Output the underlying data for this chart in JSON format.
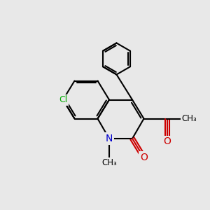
{
  "bg_color": "#e8e8e8",
  "bond_color": "#000000",
  "bond_width": 1.5,
  "atom_colors": {
    "N": "#0000cc",
    "O": "#cc0000",
    "Cl": "#00aa00",
    "C": "#000000"
  },
  "font_size": 9,
  "fig_size": [
    3.0,
    3.0
  ],
  "dpi": 100
}
